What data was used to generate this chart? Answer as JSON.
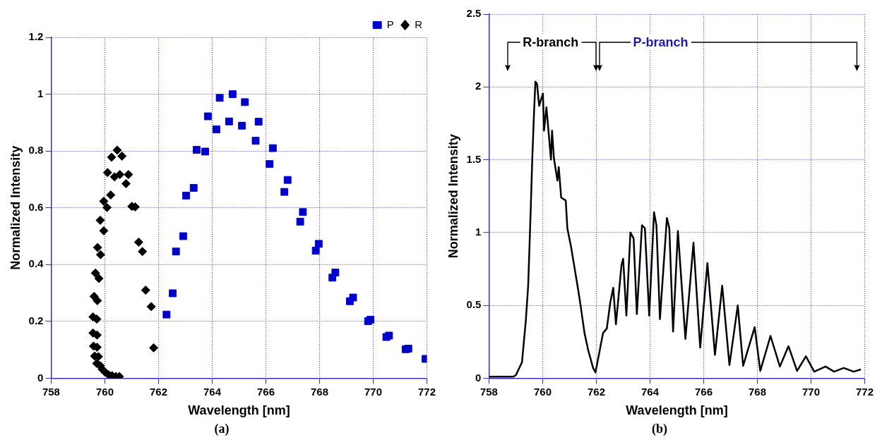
{
  "chart_data": [
    {
      "type": "scatter",
      "xlabel": "Wavelength [nm]",
      "ylabel": "Normalized Intensity",
      "xlim": [
        758,
        772
      ],
      "xticks": [
        758,
        760,
        762,
        764,
        766,
        768,
        770,
        772
      ],
      "ylim": [
        0,
        1.2
      ],
      "yticks": [
        0,
        0.2,
        0.4,
        0.6,
        0.8,
        1,
        1.2
      ],
      "grid": true,
      "legend": "top right",
      "annotations": [
        "(a)"
      ],
      "series": [
        {
          "name": "P",
          "color": "#0000cc",
          "marker": "square",
          "x": [
            762.3,
            762.53,
            762.65,
            762.92,
            763.03,
            763.31,
            763.42,
            763.74,
            763.84,
            764.16,
            764.28,
            764.63,
            764.76,
            765.11,
            765.22,
            765.62,
            765.73,
            766.14,
            766.26,
            766.69,
            766.81,
            767.28,
            767.38,
            767.86,
            767.97,
            768.48,
            768.59,
            769.13,
            769.25,
            769.81,
            769.9,
            770.49,
            770.59,
            771.21,
            771.31,
            771.95
          ],
          "values": [
            0.224,
            0.299,
            0.446,
            0.5,
            0.643,
            0.67,
            0.804,
            0.798,
            0.922,
            0.876,
            0.987,
            0.904,
            1,
            0.889,
            0.972,
            0.836,
            0.903,
            0.754,
            0.81,
            0.656,
            0.698,
            0.551,
            0.585,
            0.449,
            0.473,
            0.354,
            0.372,
            0.271,
            0.284,
            0.201,
            0.206,
            0.145,
            0.15,
            0.102,
            0.104,
            0.068
          ]
        },
        {
          "name": "R",
          "color": "#000000",
          "marker": "diamond",
          "x": [
            760.46,
            760.25,
            760.64,
            760.1,
            760.36,
            760.56,
            760.88,
            760.79,
            760.22,
            759.96,
            760.08,
            761.01,
            761.13,
            759.83,
            759.96,
            761.26,
            761.4,
            759.73,
            759.84,
            759.65,
            759.78,
            761.52,
            761.73,
            761.82,
            759.6,
            759.72,
            759.56,
            759.7,
            759.56,
            759.71,
            759.58,
            759.71,
            759.62,
            759.76,
            759.7,
            759.83,
            759.9,
            760.01,
            760.13,
            760.27,
            760.41,
            760.54
          ],
          "values": [
            0.803,
            0.778,
            0.782,
            0.724,
            0.709,
            0.717,
            0.717,
            0.685,
            0.645,
            0.623,
            0.601,
            0.605,
            0.603,
            0.556,
            0.519,
            0.479,
            0.446,
            0.46,
            0.435,
            0.37,
            0.351,
            0.31,
            0.252,
            0.107,
            0.288,
            0.273,
            0.216,
            0.208,
            0.159,
            0.152,
            0.113,
            0.109,
            0.078,
            0.076,
            0.052,
            0.044,
            0.032,
            0.021,
            0.013,
            0.009,
            0.006,
            0.006
          ]
        }
      ]
    },
    {
      "type": "line",
      "xlabel": "Wavelength [nm]",
      "ylabel": "Normalized Intensity",
      "xlim": [
        758,
        772
      ],
      "xticks": [
        758,
        760,
        762,
        764,
        766,
        768,
        770,
        772
      ],
      "ylim": [
        0,
        2.5
      ],
      "yticks": [
        0,
        0.5,
        1,
        1.5,
        2,
        2.5
      ],
      "grid": true,
      "annotations": [
        "(b)",
        "R-branch",
        "P-branch"
      ],
      "series": [
        {
          "color": "#000000",
          "x": [
            758,
            758.5,
            758.9,
            759.0,
            759.23,
            759.37,
            759.46,
            759.55,
            759.61,
            759.68,
            759.73,
            759.79,
            759.87,
            760.01,
            760.05,
            760.14,
            760.23,
            760.31,
            760.35,
            760.42,
            760.55,
            760.6,
            760.69,
            760.86,
            760.92,
            761.06,
            761.15,
            761.33,
            761.42,
            761.56,
            761.7,
            761.88,
            761.97,
            762.25,
            762.39,
            762.52,
            762.63,
            762.73,
            762.94,
            763.0,
            763.12,
            763.27,
            763.39,
            763.51,
            763.7,
            763.81,
            763.97,
            764.15,
            764.24,
            764.37,
            764.63,
            764.72,
            764.86,
            765.04,
            765.32,
            765.62,
            765.87,
            766.14,
            766.42,
            766.69,
            766.96,
            767.27,
            767.47,
            767.9,
            768.11,
            768.49,
            768.84,
            769.16,
            769.48,
            769.81,
            770.12,
            770.54,
            770.86,
            771.22,
            771.59,
            771.86
          ],
          "values": [
            0.01,
            0.01,
            0.01,
            0.02,
            0.11,
            0.39,
            0.635,
            1.127,
            1.488,
            1.832,
            2.037,
            2.02,
            1.87,
            1.955,
            1.7,
            1.86,
            1.67,
            1.5,
            1.7,
            1.51,
            1.357,
            1.45,
            1.24,
            1.22,
            1.03,
            0.9,
            0.8,
            0.6,
            0.49,
            0.31,
            0.19,
            0.07,
            0.04,
            0.31,
            0.34,
            0.52,
            0.62,
            0.37,
            0.78,
            0.82,
            0.43,
            1.0,
            0.96,
            0.44,
            1.05,
            1.03,
            0.43,
            1.14,
            1.05,
            0.405,
            1.1,
            1.03,
            0.32,
            1.01,
            0.27,
            0.93,
            0.21,
            0.79,
            0.16,
            0.635,
            0.09,
            0.5,
            0.085,
            0.35,
            0.05,
            0.29,
            0.08,
            0.22,
            0.05,
            0.15,
            0.045,
            0.08,
            0.045,
            0.07,
            0.045,
            0.06
          ]
        }
      ]
    }
  ]
}
